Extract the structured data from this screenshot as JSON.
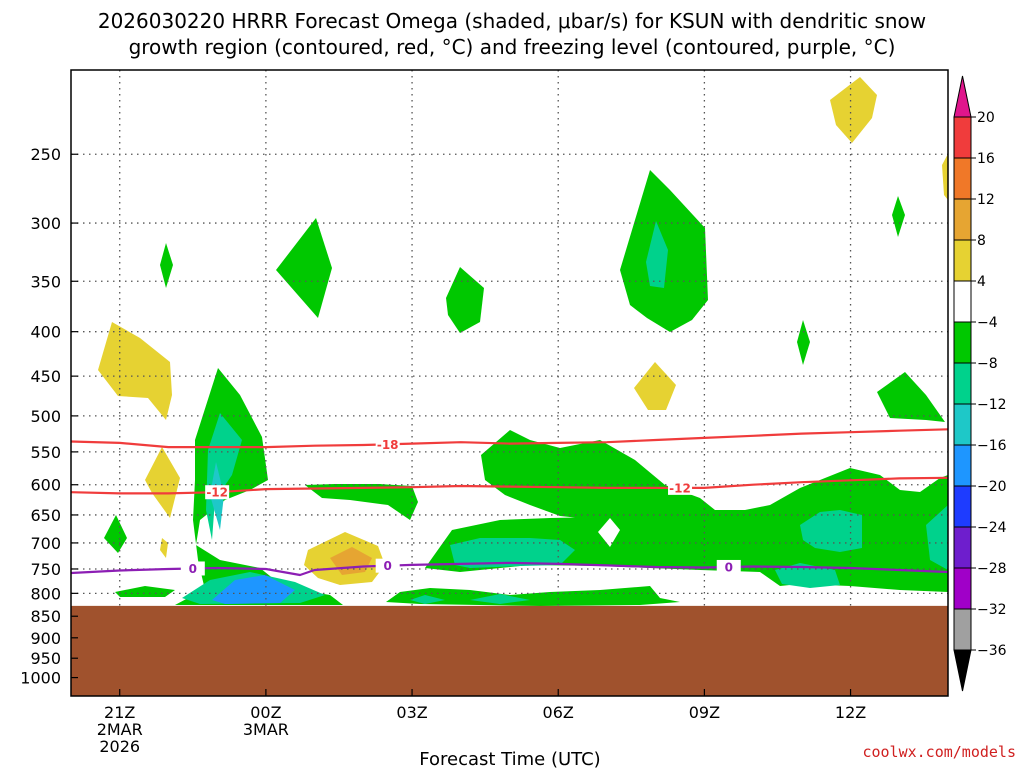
{
  "chart_data": {
    "type": "time-height cross section",
    "title_line1": "2026030220 HRRR Forecast Omega (shaded, μbar/s) for KSUN with dendritic snow",
    "title_line2": "growth region (contoured, red, °C) and freezing level (contoured, purple, °C)",
    "xlabel": "Forecast Time (UTC)",
    "credit": "coolwx.com/models",
    "y_axis": {
      "type": "pressure",
      "units": "hPa",
      "ylim": [
        1050,
        200
      ],
      "ticks": [
        250,
        300,
        350,
        400,
        450,
        500,
        550,
        600,
        650,
        700,
        750,
        800,
        850,
        900,
        950,
        1000
      ]
    },
    "x_axis": {
      "units": "forecast hour",
      "xlim": [
        -1,
        17
      ],
      "ticks": [
        {
          "hour": 0,
          "line1": "21Z",
          "line2": "2MAR",
          "line3": "2026"
        },
        {
          "hour": 3,
          "line1": "00Z",
          "line2": "3MAR",
          "line3": ""
        },
        {
          "hour": 6,
          "line1": "03Z",
          "line2": "",
          "line3": ""
        },
        {
          "hour": 9,
          "line1": "06Z",
          "line2": "",
          "line3": ""
        },
        {
          "hour": 12,
          "line1": "09Z",
          "line2": "",
          "line3": ""
        },
        {
          "hour": 15,
          "line1": "12Z",
          "line2": "",
          "line3": ""
        }
      ]
    },
    "colorbar": {
      "units": "μbar/s",
      "top_arrow_color": "#e0158c",
      "bottom_arrow_color": "#000000",
      "levels": [
        {
          "label": "20",
          "color": "#f03c3c"
        },
        {
          "label": "16",
          "color": "#f07828"
        },
        {
          "label": "12",
          "color": "#e6a532"
        },
        {
          "label": "8",
          "color": "#e6d232"
        },
        {
          "label": "4",
          "color": "#ffffff"
        },
        {
          "label": "−4",
          "color": "#00c800"
        },
        {
          "label": "−8",
          "color": "#00d28c"
        },
        {
          "label": "−12",
          "color": "#1ec8c8"
        },
        {
          "label": "−16",
          "color": "#1e96ff"
        },
        {
          "label": "−20",
          "color": "#1e3cff"
        },
        {
          "label": "−24",
          "color": "#6e1ecd"
        },
        {
          "label": "−28",
          "color": "#a000c8"
        },
        {
          "label": "−32",
          "color": "#a0a0a0"
        },
        {
          "label": "−36",
          "color": "#000000"
        }
      ]
    },
    "terrain": {
      "surface_pressure_hpa": 827,
      "color": "#a0522d"
    },
    "omega_regions": [
      {
        "level": "rising -4 to -8",
        "color": "#00c800",
        "count": 18
      },
      {
        "level": "rising -8 to -12",
        "color": "#00d28c",
        "count": 6
      },
      {
        "level": "rising -12 to -16",
        "color": "#1ec8c8",
        "count": 1
      },
      {
        "level": "rising -16 to -20",
        "color": "#1e96ff",
        "count": 1
      },
      {
        "level": "sinking 4 to 8",
        "color": "#e6d232",
        "count": 7
      },
      {
        "level": "sinking 8 to 12",
        "color": "#e6a532",
        "count": 1
      }
    ],
    "series": [
      {
        "name": "-18 °C isotherm",
        "label": "-18",
        "color": "#f03c3c",
        "hours": [
          -1,
          0,
          1,
          2,
          3,
          4,
          5,
          6,
          7,
          8,
          9,
          10,
          11,
          12,
          13,
          14,
          15,
          16,
          17
        ],
        "pressure": [
          535,
          537,
          543,
          543,
          543,
          541,
          540,
          538,
          536,
          538,
          537,
          536,
          533,
          530,
          527,
          524,
          522,
          520,
          518
        ]
      },
      {
        "name": "-12 °C isotherm",
        "label": "-12",
        "color": "#f03c3c",
        "hours": [
          -1,
          0,
          1,
          2,
          3,
          4,
          5,
          6,
          7,
          8,
          9,
          10,
          11,
          12,
          13,
          14,
          15,
          16,
          17
        ],
        "pressure": [
          612,
          614,
          614,
          612,
          607,
          606,
          605,
          604,
          602,
          603,
          604,
          605,
          605,
          605,
          600,
          596,
          593,
          590,
          589
        ]
      },
      {
        "name": "0 °C freezing level",
        "label": "0",
        "color": "#8c1eb4",
        "hours": [
          -1,
          0,
          1,
          2,
          3,
          3.7,
          4,
          5,
          6,
          7,
          8,
          9,
          10,
          11,
          12,
          13,
          14,
          15,
          16,
          17
        ],
        "pressure": [
          758,
          753,
          750,
          748,
          750,
          762,
          752,
          745,
          742,
          740,
          738,
          740,
          743,
          746,
          747,
          745,
          746,
          748,
          752,
          756
        ]
      }
    ]
  }
}
